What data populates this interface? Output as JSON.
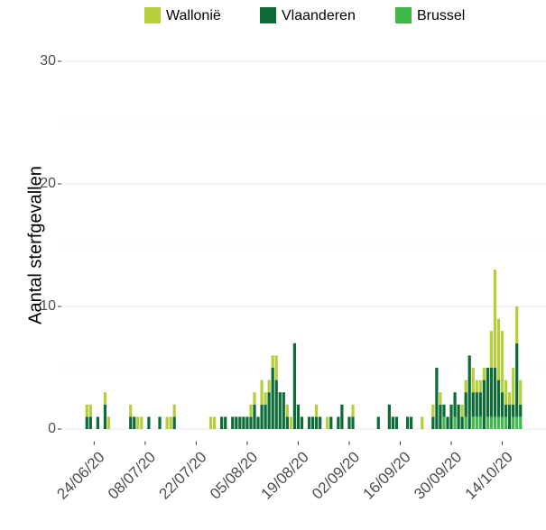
{
  "chart_data": {
    "type": "stacked_bar",
    "y_label": "Aantal sterfgevallen",
    "x": [
      "2020-06-22",
      "2020-06-23",
      "2020-06-25",
      "2020-06-27",
      "2020-06-28",
      "2020-07-04",
      "2020-07-05",
      "2020-07-06",
      "2020-07-07",
      "2020-07-09",
      "2020-07-12",
      "2020-07-14",
      "2020-07-15",
      "2020-07-16",
      "2020-07-26",
      "2020-07-27",
      "2020-07-29",
      "2020-07-30",
      "2020-08-01",
      "2020-08-02",
      "2020-08-03",
      "2020-08-04",
      "2020-08-05",
      "2020-08-06",
      "2020-08-07",
      "2020-08-08",
      "2020-08-09",
      "2020-08-10",
      "2020-08-11",
      "2020-08-12",
      "2020-08-13",
      "2020-08-14",
      "2020-08-15",
      "2020-08-16",
      "2020-08-17",
      "2020-08-18",
      "2020-08-19",
      "2020-08-20",
      "2020-08-22",
      "2020-08-23",
      "2020-08-24",
      "2020-08-25",
      "2020-08-27",
      "2020-08-28",
      "2020-08-30",
      "2020-08-31",
      "2020-09-02",
      "2020-09-03",
      "2020-09-10",
      "2020-09-13",
      "2020-09-14",
      "2020-09-15",
      "2020-09-18",
      "2020-09-19",
      "2020-09-22",
      "2020-09-25",
      "2020-09-26",
      "2020-09-27",
      "2020-09-28",
      "2020-09-29",
      "2020-09-30",
      "2020-10-01",
      "2020-10-02",
      "2020-10-03",
      "2020-10-04",
      "2020-10-05",
      "2020-10-06",
      "2020-10-07",
      "2020-10-08",
      "2020-10-09",
      "2020-10-10",
      "2020-10-11",
      "2020-10-12",
      "2020-10-13",
      "2020-10-14",
      "2020-10-15",
      "2020-10-16",
      "2020-10-17",
      "2020-10-18",
      "2020-10-19"
    ],
    "series": [
      {
        "name": "Wallonië",
        "color": "#b5cf3c",
        "values": [
          1,
          1,
          0,
          1,
          1,
          1,
          0,
          1,
          1,
          0,
          0,
          1,
          1,
          1,
          1,
          1,
          0,
          0,
          0,
          0,
          0,
          0,
          0,
          1,
          1,
          0,
          2,
          1,
          1,
          1,
          2,
          0,
          0,
          1,
          1,
          0,
          0,
          0,
          0,
          0,
          1,
          0,
          1,
          0,
          0,
          0,
          0,
          1,
          0,
          0,
          0,
          0,
          0,
          0,
          1,
          1,
          0,
          1,
          0,
          0,
          0,
          0,
          0,
          1,
          1,
          0,
          2,
          1,
          1,
          1,
          0,
          3,
          8,
          5,
          5,
          2,
          1,
          3,
          3,
          2
        ]
      },
      {
        "name": "Vlaanderen",
        "color": "#0e6b38",
        "values": [
          1,
          1,
          1,
          2,
          0,
          1,
          1,
          0,
          0,
          1,
          1,
          0,
          0,
          1,
          0,
          0,
          1,
          1,
          1,
          1,
          1,
          1,
          1,
          1,
          2,
          1,
          2,
          2,
          3,
          5,
          4,
          3,
          3,
          1,
          0,
          7,
          2,
          1,
          1,
          1,
          1,
          1,
          0,
          1,
          1,
          2,
          1,
          1,
          1,
          2,
          1,
          1,
          1,
          1,
          0,
          1,
          5,
          2,
          1,
          1,
          2,
          2,
          2,
          1,
          2,
          6,
          2,
          2,
          2,
          4,
          4,
          4,
          4,
          3,
          2,
          1,
          2,
          1,
          6,
          1
        ]
      },
      {
        "name": "Brussel",
        "color": "#3fba4a",
        "values": [
          0,
          0,
          0,
          0,
          0,
          0,
          0,
          0,
          0,
          0,
          0,
          0,
          0,
          0,
          0,
          0,
          0,
          0,
          0,
          0,
          0,
          0,
          0,
          0,
          0,
          0,
          0,
          0,
          0,
          0,
          0,
          0,
          0,
          0,
          0,
          0,
          0,
          0,
          0,
          0,
          0,
          0,
          0,
          0,
          0,
          0,
          0,
          0,
          0,
          0,
          0,
          0,
          0,
          0,
          0,
          0,
          0,
          0,
          1,
          0,
          0,
          1,
          0,
          0,
          1,
          0,
          1,
          1,
          1,
          0,
          1,
          1,
          1,
          1,
          1,
          1,
          0,
          1,
          1,
          1
        ]
      }
    ],
    "xlim": [
      "2020-06-15",
      "2020-10-26"
    ],
    "xticks": [
      {
        "value": "2020-06-24",
        "label": "24/06/20"
      },
      {
        "value": "2020-07-08",
        "label": "08/07/20"
      },
      {
        "value": "2020-07-22",
        "label": "22/07/20"
      },
      {
        "value": "2020-08-05",
        "label": "05/08/20"
      },
      {
        "value": "2020-08-19",
        "label": "19/08/20"
      },
      {
        "value": "2020-09-02",
        "label": "02/09/20"
      },
      {
        "value": "2020-09-16",
        "label": "16/09/20"
      },
      {
        "value": "2020-09-30",
        "label": "30/09/20"
      },
      {
        "value": "2020-10-14",
        "label": "14/10/20"
      }
    ],
    "ylim": [
      -1,
      31.5
    ],
    "yticks": [
      0,
      10,
      20,
      30
    ],
    "y_minor_ticks": [
      5,
      15,
      25
    ],
    "grid": true,
    "legend_position": "top"
  }
}
